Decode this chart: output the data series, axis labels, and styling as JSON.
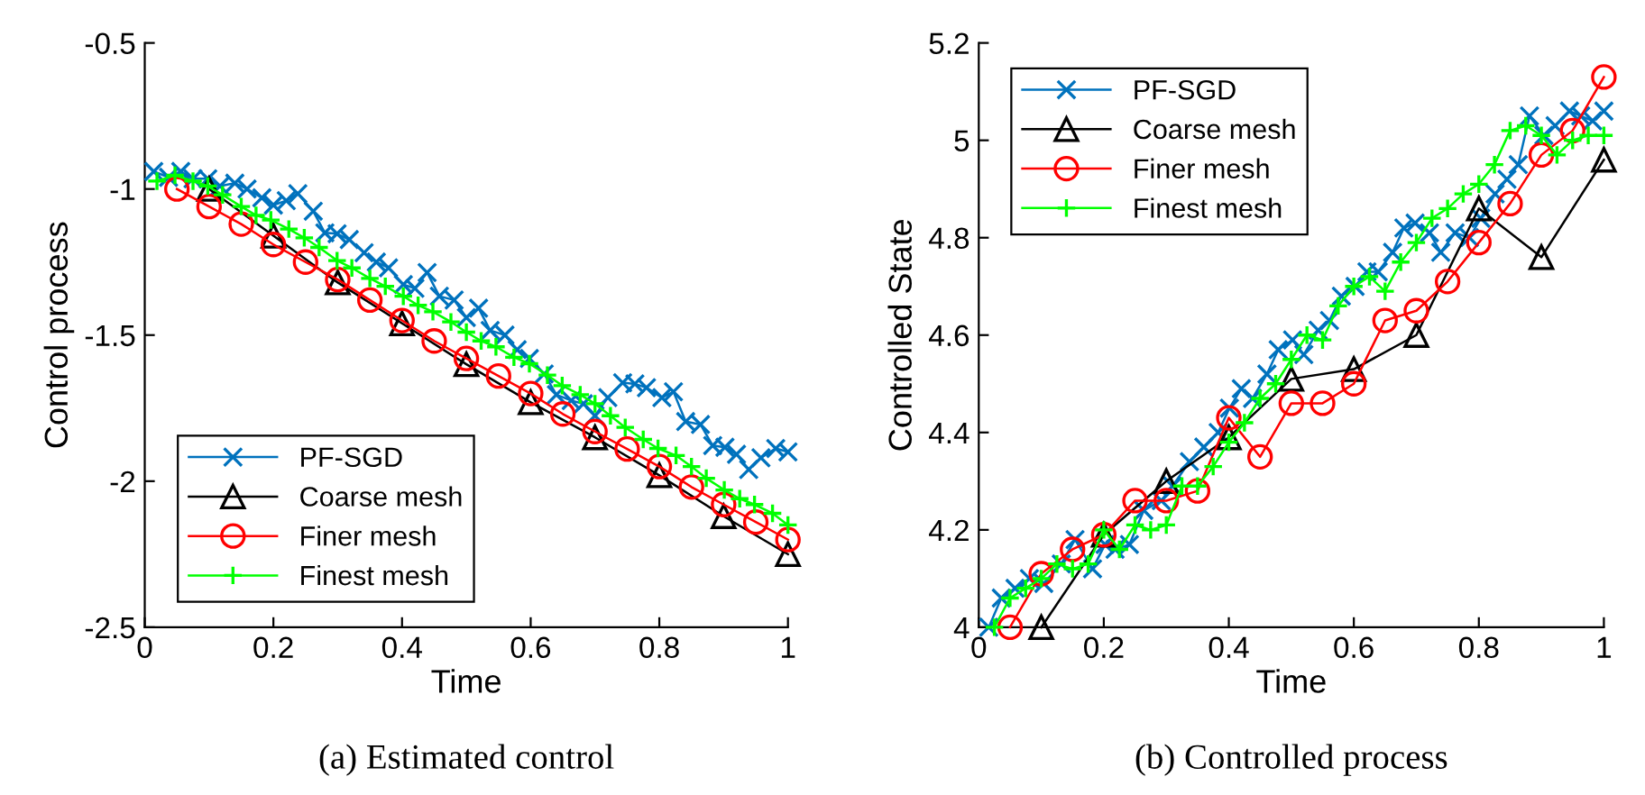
{
  "chart_data": [
    {
      "type": "line",
      "xlabel": "Time",
      "ylabel": "Control process",
      "annotations": [
        "(a) Estimated control"
      ],
      "xlim": [
        0,
        1
      ],
      "ylim": [
        -2.5,
        -0.5
      ],
      "xticks": [
        0,
        0.2,
        0.4,
        0.6,
        0.8,
        1
      ],
      "yticks": [
        -2.5,
        -2,
        -1.5,
        -1,
        -0.5
      ],
      "legend": "bottom left",
      "grid": false,
      "series": [
        {
          "name": "PF-SGD",
          "color": "#0072bd",
          "marker": "cross",
          "x": [
            0.014,
            0.037,
            0.056,
            0.075,
            0.098,
            0.117,
            0.14,
            0.159,
            0.182,
            0.2,
            0.22,
            0.238,
            0.262,
            0.28,
            0.299,
            0.318,
            0.341,
            0.36,
            0.379,
            0.402,
            0.42,
            0.439,
            0.458,
            0.481,
            0.5,
            0.519,
            0.537,
            0.56,
            0.579,
            0.598,
            0.621,
            0.64,
            0.663,
            0.682,
            0.7,
            0.72,
            0.743,
            0.762,
            0.78,
            0.804,
            0.822,
            0.841,
            0.864,
            0.883,
            0.902,
            0.92,
            0.939,
            0.958,
            0.981,
            1.0
          ],
          "values": [
            -0.94,
            -0.96,
            -0.94,
            -0.965,
            -0.965,
            -0.99,
            -0.98,
            -1.0,
            -1.03,
            -1.055,
            -1.04,
            -1.016,
            -1.076,
            -1.15,
            -1.153,
            -1.173,
            -1.218,
            -1.25,
            -1.27,
            -1.327,
            -1.34,
            -1.286,
            -1.367,
            -1.38,
            -1.44,
            -1.408,
            -1.484,
            -1.5,
            -1.55,
            -1.58,
            -1.633,
            -1.704,
            -1.724,
            -1.735,
            -1.776,
            -1.714,
            -1.663,
            -1.667,
            -1.68,
            -1.714,
            -1.694,
            -1.796,
            -1.806,
            -1.878,
            -1.884,
            -1.908,
            -1.96,
            -1.92,
            -1.888,
            -1.9
          ]
        },
        {
          "name": "Coarse mesh",
          "color": "#000000",
          "marker": "triangle",
          "x": [
            0.1,
            0.2,
            0.3,
            0.4,
            0.5,
            0.6,
            0.7,
            0.8,
            0.9,
            1.0
          ],
          "values": [
            -1.0,
            -1.16,
            -1.32,
            -1.46,
            -1.6,
            -1.73,
            -1.85,
            -1.98,
            -2.12,
            -2.25
          ]
        },
        {
          "name": "Finer mesh",
          "color": "#ff0000",
          "marker": "circle",
          "x": [
            0.05,
            0.1,
            0.15,
            0.2,
            0.25,
            0.3,
            0.35,
            0.4,
            0.45,
            0.5,
            0.55,
            0.6,
            0.65,
            0.7,
            0.75,
            0.8,
            0.85,
            0.9,
            0.95,
            1.0
          ],
          "values": [
            -1.0,
            -1.06,
            -1.12,
            -1.19,
            -1.25,
            -1.31,
            -1.38,
            -1.45,
            -1.52,
            -1.58,
            -1.64,
            -1.7,
            -1.77,
            -1.83,
            -1.89,
            -1.95,
            -2.02,
            -2.08,
            -2.14,
            -2.2
          ]
        },
        {
          "name": "Finest mesh",
          "color": "#00ff00",
          "marker": "plus",
          "x": [
            0.019,
            0.047,
            0.075,
            0.098,
            0.121,
            0.15,
            0.173,
            0.196,
            0.224,
            0.248,
            0.271,
            0.299,
            0.322,
            0.35,
            0.374,
            0.402,
            0.425,
            0.448,
            0.476,
            0.5,
            0.523,
            0.546,
            0.574,
            0.598,
            0.626,
            0.649,
            0.677,
            0.7,
            0.724,
            0.747,
            0.775,
            0.798,
            0.826,
            0.85,
            0.873,
            0.901,
            0.925,
            0.948,
            0.976,
            1.0
          ],
          "values": [
            -0.973,
            -0.953,
            -0.973,
            -0.99,
            -1.02,
            -1.06,
            -1.09,
            -1.106,
            -1.137,
            -1.167,
            -1.2,
            -1.245,
            -1.27,
            -1.306,
            -1.333,
            -1.367,
            -1.398,
            -1.42,
            -1.455,
            -1.49,
            -1.52,
            -1.54,
            -1.576,
            -1.598,
            -1.637,
            -1.673,
            -1.704,
            -1.735,
            -1.776,
            -1.816,
            -1.857,
            -1.888,
            -1.912,
            -1.95,
            -1.99,
            -2.03,
            -2.06,
            -2.08,
            -2.11,
            -2.15
          ]
        }
      ]
    },
    {
      "type": "line",
      "xlabel": "Time",
      "ylabel": "Controlled State",
      "annotations": [
        "(b) Controlled process"
      ],
      "xlim": [
        0,
        1
      ],
      "ylim": [
        4,
        5.2
      ],
      "xticks": [
        0,
        0.2,
        0.4,
        0.6,
        0.8,
        1
      ],
      "yticks": [
        4,
        4.2,
        4.4,
        4.6,
        4.8,
        5,
        5.2
      ],
      "legend": "top left",
      "grid": false,
      "series": [
        {
          "name": "PF-SGD",
          "color": "#0072bd",
          "marker": "cross",
          "x": [
            0.016,
            0.036,
            0.058,
            0.081,
            0.104,
            0.132,
            0.154,
            0.182,
            0.202,
            0.218,
            0.241,
            0.264,
            0.292,
            0.31,
            0.337,
            0.36,
            0.383,
            0.401,
            0.42,
            0.438,
            0.461,
            0.479,
            0.502,
            0.52,
            0.543,
            0.561,
            0.58,
            0.602,
            0.621,
            0.639,
            0.662,
            0.68,
            0.698,
            0.721,
            0.739,
            0.762,
            0.785,
            0.803,
            0.826,
            0.845,
            0.863,
            0.881,
            0.904,
            0.922,
            0.945,
            0.963,
            0.982,
            1.0
          ],
          "values": [
            4.0,
            4.06,
            4.08,
            4.1,
            4.09,
            4.13,
            4.18,
            4.12,
            4.17,
            4.16,
            4.17,
            4.24,
            4.26,
            4.29,
            4.34,
            4.37,
            4.4,
            4.45,
            4.49,
            4.47,
            4.52,
            4.57,
            4.59,
            4.56,
            4.61,
            4.63,
            4.68,
            4.7,
            4.73,
            4.73,
            4.77,
            4.82,
            4.83,
            4.81,
            4.77,
            4.81,
            4.8,
            4.84,
            4.89,
            4.92,
            4.95,
            5.05,
            5.01,
            5.03,
            5.06,
            5.05,
            5.04,
            5.06
          ]
        },
        {
          "name": "Coarse mesh",
          "color": "#000000",
          "marker": "triangle",
          "x": [
            0.1,
            0.2,
            0.3,
            0.4,
            0.5,
            0.6,
            0.7,
            0.8,
            0.9,
            1.0
          ],
          "values": [
            4.0,
            4.19,
            4.3,
            4.39,
            4.51,
            4.53,
            4.6,
            4.86,
            4.76,
            4.96
          ]
        },
        {
          "name": "Finer mesh",
          "color": "#ff0000",
          "marker": "circle",
          "x": [
            0.05,
            0.1,
            0.15,
            0.2,
            0.25,
            0.3,
            0.35,
            0.4,
            0.45,
            0.5,
            0.55,
            0.6,
            0.65,
            0.7,
            0.75,
            0.8,
            0.85,
            0.9,
            0.95,
            1.0
          ],
          "values": [
            4.0,
            4.11,
            4.16,
            4.19,
            4.26,
            4.26,
            4.28,
            4.43,
            4.35,
            4.46,
            4.46,
            4.5,
            4.63,
            4.65,
            4.71,
            4.79,
            4.87,
            4.97,
            5.02,
            5.13
          ]
        },
        {
          "name": "Finest mesh",
          "color": "#00ff00",
          "marker": "plus",
          "x": [
            0.025,
            0.05,
            0.075,
            0.1,
            0.125,
            0.15,
            0.175,
            0.2,
            0.225,
            0.25,
            0.275,
            0.3,
            0.325,
            0.35,
            0.375,
            0.4,
            0.425,
            0.45,
            0.475,
            0.5,
            0.525,
            0.55,
            0.575,
            0.6,
            0.625,
            0.65,
            0.675,
            0.7,
            0.725,
            0.75,
            0.775,
            0.8,
            0.825,
            0.85,
            0.875,
            0.9,
            0.925,
            0.95,
            0.975,
            1.0
          ],
          "values": [
            4.0,
            4.06,
            4.08,
            4.1,
            4.13,
            4.12,
            4.13,
            4.2,
            4.16,
            4.21,
            4.2,
            4.21,
            4.29,
            4.29,
            4.33,
            4.38,
            4.42,
            4.47,
            4.5,
            4.55,
            4.6,
            4.59,
            4.66,
            4.7,
            4.72,
            4.69,
            4.75,
            4.79,
            4.84,
            4.86,
            4.89,
            4.91,
            4.95,
            5.02,
            5.03,
            5.01,
            4.97,
            5.0,
            5.01,
            5.01
          ]
        }
      ]
    }
  ]
}
